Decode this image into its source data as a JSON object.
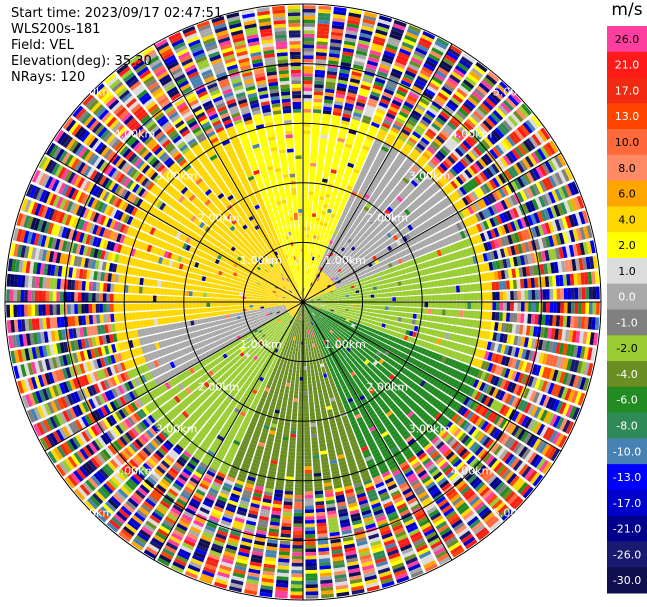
{
  "info": {
    "start_time": "Start time: 2023/09/17 02:47:51",
    "station": "WLS200s-181",
    "field": "Field: VEL",
    "elevation": "Elevation(deg): 35.30",
    "nrays": "NRays: 120"
  },
  "chart_data": {
    "type": "heatmap",
    "projection": "polar PPI",
    "field": "VEL",
    "units": "m/s",
    "n_rays": 120,
    "elevation_deg": 35.3,
    "range_rings_km": [
      1.0,
      2.0,
      3.0,
      4.0,
      5.0
    ],
    "ring_labels": [
      "1.00km",
      "2.00km",
      "3.00km",
      "4.00km",
      "5.00km"
    ],
    "max_range_km": 5.0,
    "spokes_deg": [
      0,
      30,
      60,
      90,
      120,
      150,
      180,
      210,
      240,
      270,
      300,
      330
    ],
    "colorbar": {
      "unit_label": "m/s",
      "ticks": [
        "26.0",
        "21.0",
        "17.0",
        "13.0",
        "10.0",
        "8.0",
        "6.0",
        "4.0",
        "2.0",
        "1.0",
        "0.0",
        "-1.0",
        "-2.0",
        "-4.0",
        "-6.0",
        "-8.0",
        "-10.0",
        "-13.0",
        "-17.0",
        "-21.0",
        "-26.0",
        "-30.0"
      ],
      "colors": [
        "#ff3fa0",
        "#ff1a1a",
        "#f02a10",
        "#ff4500",
        "#ff6a3c",
        "#ff8a65",
        "#ffa500",
        "#ffd700",
        "#ffff00",
        "#dcdcdc",
        "#a9a9a9",
        "#808080",
        "#9acd32",
        "#6b8e23",
        "#228b22",
        "#2e8b57",
        "#4682b4",
        "#0000ff",
        "#0000cd",
        "#00008b",
        "#191970",
        "#0f0f50"
      ]
    },
    "sectors": [
      {
        "from_deg": 0,
        "to_deg": 25,
        "class": "2.0",
        "range_km": [
          0,
          3.2
        ]
      },
      {
        "from_deg": 25,
        "to_deg": 70,
        "class": "0.0",
        "range_km": [
          0.6,
          3.0
        ]
      },
      {
        "from_deg": 70,
        "to_deg": 110,
        "class": "-2.0",
        "range_km": [
          0,
          3.0
        ]
      },
      {
        "from_deg": 110,
        "to_deg": 160,
        "class": "-6.0",
        "range_km": [
          0,
          3.3
        ]
      },
      {
        "from_deg": 160,
        "to_deg": 205,
        "class": "-4.0",
        "range_km": [
          0,
          3.5
        ]
      },
      {
        "from_deg": 205,
        "to_deg": 250,
        "class": "-2.0",
        "range_km": [
          0.3,
          3.3
        ]
      },
      {
        "from_deg": 240,
        "to_deg": 262,
        "class": "0.0",
        "range_km": [
          0.3,
          2.8
        ]
      },
      {
        "from_deg": 262,
        "to_deg": 300,
        "class": "4.0",
        "range_km": [
          0,
          3.2
        ]
      },
      {
        "from_deg": 300,
        "to_deg": 340,
        "class": "4.0",
        "range_km": [
          0,
          2.5
        ]
      },
      {
        "from_deg": 340,
        "to_deg": 360,
        "class": "2.0",
        "range_km": [
          0,
          3.2
        ]
      },
      {
        "from_deg": 0,
        "to_deg": 360,
        "class": "noise",
        "range_km": [
          3.2,
          5.0
        ]
      }
    ]
  }
}
